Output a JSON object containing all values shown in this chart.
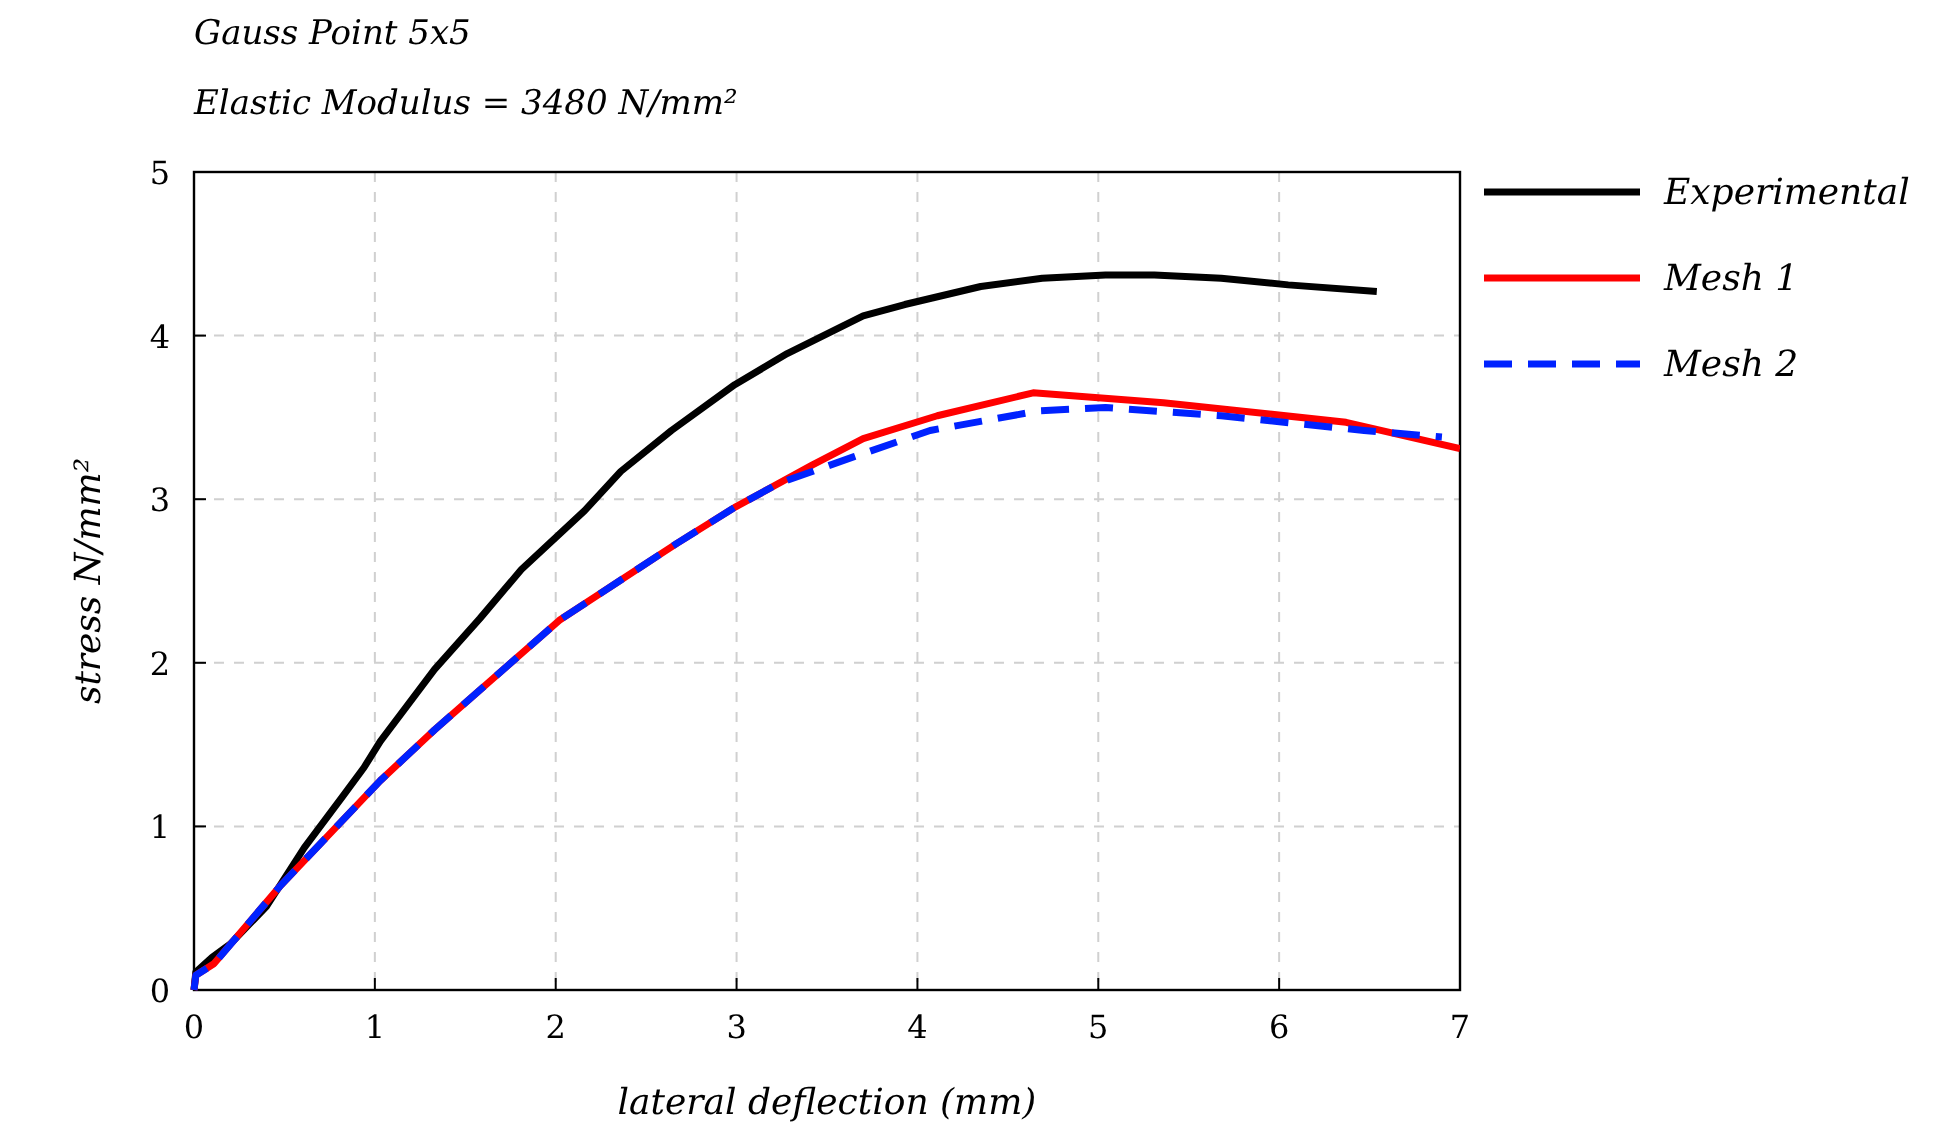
{
  "chart_data": {
    "type": "line",
    "title": "Gauss Point 5x5",
    "subtitle": "Elastic Modulus = 3480 N/mm²",
    "xlabel": "lateral deflection (mm)",
    "ylabel": "stress N/mm²",
    "xlim": [
      0,
      7
    ],
    "ylim": [
      0,
      5
    ],
    "xticks": [
      0,
      1,
      2,
      3,
      4,
      5,
      6,
      7
    ],
    "yticks": [
      0,
      1,
      2,
      3,
      4,
      5
    ],
    "grid": true,
    "legend": "right",
    "series": [
      {
        "name": "Experimental",
        "color": "#000000",
        "line_style": "solid",
        "x": [
          0,
          0.01,
          0.1,
          0.2,
          0.4,
          0.61,
          0.82,
          0.94,
          1.03,
          1.33,
          1.58,
          1.81,
          2.16,
          2.36,
          2.64,
          2.99,
          3.28,
          3.7,
          3.93,
          4.35,
          4.69,
          5.04,
          5.31,
          5.68,
          6.05,
          6.54
        ],
        "values": [
          0,
          0.11,
          0.2,
          0.28,
          0.51,
          0.87,
          1.18,
          1.36,
          1.52,
          1.96,
          2.27,
          2.57,
          2.93,
          3.17,
          3.42,
          3.7,
          3.89,
          4.12,
          4.19,
          4.3,
          4.35,
          4.37,
          4.37,
          4.35,
          4.31,
          4.27
        ]
      },
      {
        "name": "Mesh 1",
        "color": "#ff0000",
        "line_style": "solid",
        "x": [
          0,
          0.01,
          0.11,
          0.48,
          1.03,
          1.33,
          2.02,
          2.67,
          2.99,
          3.42,
          3.7,
          4.11,
          4.64,
          5.36,
          6.37,
          7.0
        ],
        "values": [
          0,
          0.09,
          0.16,
          0.64,
          1.28,
          1.59,
          2.26,
          2.73,
          2.95,
          3.21,
          3.37,
          3.51,
          3.65,
          3.59,
          3.47,
          3.31
        ]
      },
      {
        "name": "Mesh 2",
        "color": "#0022ff",
        "line_style": "dashed",
        "x": [
          0,
          0.01,
          0.11,
          0.48,
          1.03,
          1.33,
          2.02,
          2.67,
          2.99,
          3.24,
          3.65,
          4.07,
          4.67,
          5.04,
          5.68,
          6.47,
          6.9
        ],
        "values": [
          0,
          0.09,
          0.16,
          0.64,
          1.28,
          1.59,
          2.26,
          2.73,
          2.95,
          3.1,
          3.26,
          3.42,
          3.54,
          3.56,
          3.51,
          3.42,
          3.38
        ]
      }
    ]
  }
}
